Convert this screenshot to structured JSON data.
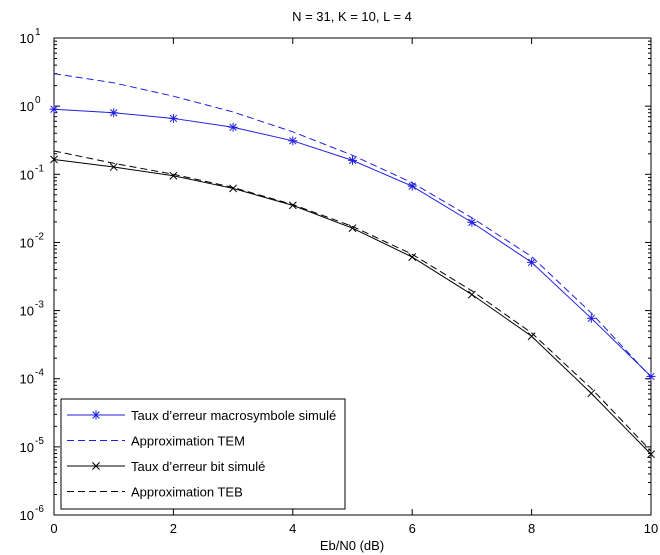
{
  "chart_data": {
    "type": "line",
    "title": "N = 31, K = 10, L = 4",
    "xlabel": "Eb/N0 (dB)",
    "ylabel": "",
    "xlim": [
      0,
      10
    ],
    "ylim": [
      1e-06,
      10
    ],
    "yscale": "log",
    "x_ticks": [
      0,
      2,
      4,
      6,
      8,
      10
    ],
    "y_ticks": [
      {
        "value": 10.0,
        "base": "10",
        "exp": "1"
      },
      {
        "value": 1.0,
        "base": "10",
        "exp": "0"
      },
      {
        "value": 0.1,
        "base": "10",
        "exp": "-1"
      },
      {
        "value": 0.01,
        "base": "10",
        "exp": "-2"
      },
      {
        "value": 0.001,
        "base": "10",
        "exp": "-3"
      },
      {
        "value": 0.0001,
        "base": "10",
        "exp": "-4"
      },
      {
        "value": 1e-05,
        "base": "10",
        "exp": "-5"
      },
      {
        "value": 1e-06,
        "base": "10",
        "exp": "-6"
      }
    ],
    "grid": false,
    "legend_position": "bottom-left",
    "series": [
      {
        "name": "Taux d’erreur macrosymbole simulé",
        "color": "#1f1fe0",
        "dash": "solid",
        "marker": "asterisk",
        "x": [
          0,
          1,
          2,
          3,
          4,
          5,
          6,
          7,
          8,
          9,
          10
        ],
        "y": [
          0.9,
          0.8,
          0.66,
          0.49,
          0.31,
          0.16,
          0.067,
          0.0197,
          0.0051,
          0.00077,
          0.000108
        ]
      },
      {
        "name": "Approximation TEM",
        "color": "#1f1fe0",
        "dash": "dashed",
        "marker": "none",
        "x": [
          0,
          1,
          2,
          3,
          4,
          5,
          6,
          7,
          8,
          9,
          10
        ],
        "y": [
          3.0,
          2.2,
          1.4,
          0.82,
          0.42,
          0.19,
          0.075,
          0.023,
          0.0062,
          0.00092,
          0.000105
        ]
      },
      {
        "name": "Taux d’erreur bit simulé",
        "color": "#000000",
        "dash": "solid",
        "marker": "x",
        "x": [
          0,
          1,
          2,
          3,
          4,
          5,
          6,
          7,
          8,
          9,
          10
        ],
        "y": [
          0.165,
          0.128,
          0.095,
          0.062,
          0.035,
          0.0162,
          0.0061,
          0.00172,
          0.00042,
          6.1e-05,
          7.8e-06
        ]
      },
      {
        "name": "Approximation TEB",
        "color": "#000000",
        "dash": "dashed",
        "marker": "none",
        "x": [
          0,
          1,
          2,
          3,
          4,
          5,
          6,
          7,
          8,
          9,
          10
        ],
        "y": [
          0.22,
          0.145,
          0.1,
          0.064,
          0.036,
          0.0172,
          0.0067,
          0.00195,
          0.00047,
          7.2e-05,
          8.7e-06
        ]
      }
    ]
  }
}
